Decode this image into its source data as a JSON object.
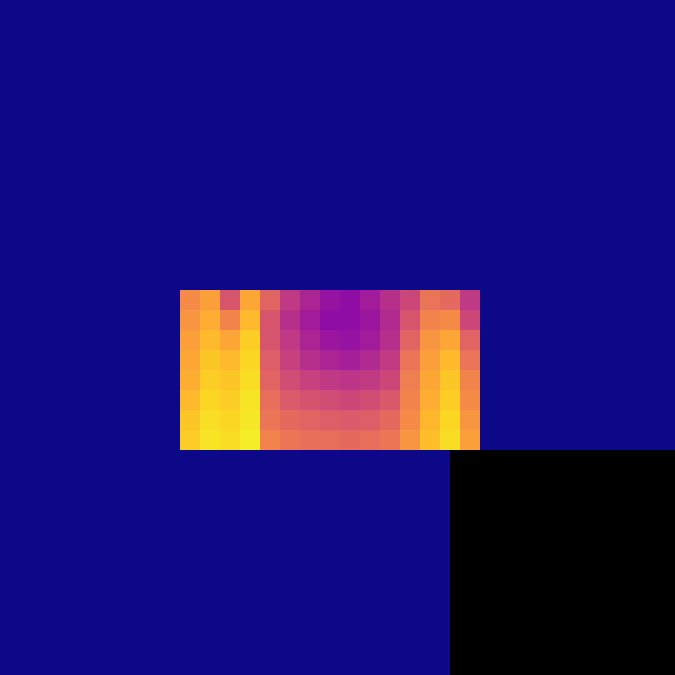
{
  "chart_data": {
    "type": "heatmap",
    "z": [
      [
        0.72,
        0.78,
        0.55,
        0.8,
        0.6,
        0.45,
        0.38,
        0.32,
        0.3,
        0.35,
        0.42,
        0.5,
        0.65,
        0.62,
        0.45
      ],
      [
        0.75,
        0.82,
        0.7,
        0.85,
        0.55,
        0.42,
        0.35,
        0.3,
        0.3,
        0.33,
        0.4,
        0.55,
        0.7,
        0.72,
        0.5
      ],
      [
        0.78,
        0.85,
        0.8,
        0.9,
        0.55,
        0.45,
        0.38,
        0.33,
        0.32,
        0.35,
        0.42,
        0.6,
        0.75,
        0.8,
        0.6
      ],
      [
        0.8,
        0.88,
        0.85,
        0.92,
        0.58,
        0.48,
        0.42,
        0.38,
        0.36,
        0.4,
        0.46,
        0.65,
        0.78,
        0.85,
        0.65
      ],
      [
        0.82,
        0.9,
        0.88,
        0.93,
        0.6,
        0.52,
        0.48,
        0.45,
        0.44,
        0.46,
        0.5,
        0.68,
        0.8,
        0.88,
        0.7
      ],
      [
        0.85,
        0.92,
        0.9,
        0.95,
        0.63,
        0.57,
        0.54,
        0.52,
        0.5,
        0.52,
        0.56,
        0.7,
        0.82,
        0.9,
        0.72
      ],
      [
        0.88,
        0.94,
        0.92,
        0.96,
        0.66,
        0.62,
        0.6,
        0.58,
        0.57,
        0.58,
        0.62,
        0.72,
        0.84,
        0.92,
        0.75
      ],
      [
        0.9,
        0.95,
        0.93,
        0.97,
        0.7,
        0.66,
        0.64,
        0.63,
        0.62,
        0.63,
        0.66,
        0.75,
        0.86,
        0.93,
        0.78
      ]
    ],
    "zlim": [
      0,
      1
    ],
    "tick_labels": false
  }
}
